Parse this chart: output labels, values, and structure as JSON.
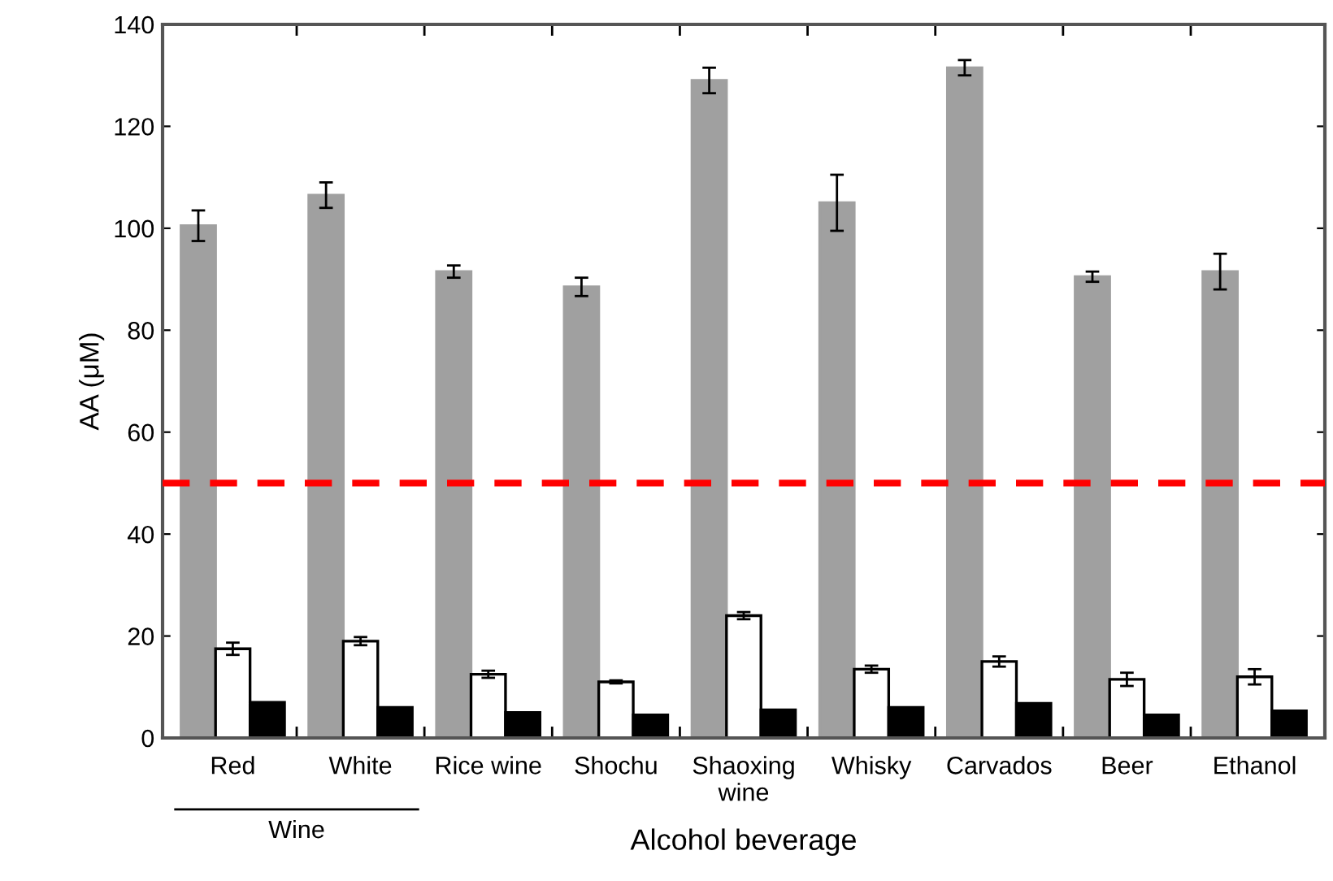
{
  "chart_data": {
    "type": "bar",
    "xlabel": "Alcohol beverage",
    "ylabel": "AA (μM)",
    "categories": [
      "Red",
      "White",
      "Rice wine",
      "Shochu",
      "Shaoxing\nwine",
      "Whisky",
      "Carvados",
      "Beer",
      "Ethanol"
    ],
    "series": [
      {
        "color": "#a0a0a0",
        "values": [
          100.5,
          106.5,
          91.5,
          88.5,
          129,
          105,
          131.5,
          90.5,
          91.5
        ],
        "errors": [
          3,
          2.5,
          1.2,
          1.8,
          2.5,
          5.5,
          1.5,
          1,
          3.5
        ]
      },
      {
        "color": "#ffffff",
        "values": [
          17.5,
          19,
          12.5,
          11,
          24,
          13.5,
          15,
          11.5,
          12
        ],
        "errors": [
          1.2,
          0.8,
          0.7,
          0.3,
          0.7,
          0.7,
          1,
          1.3,
          1.5
        ]
      },
      {
        "color": "#000000",
        "values": [
          7,
          6,
          5,
          4.5,
          5.5,
          6,
          6.8,
          4.5,
          5.3
        ]
      }
    ],
    "ylim": [
      0,
      140
    ],
    "yticks": [
      0,
      20,
      40,
      60,
      80,
      100,
      120,
      140
    ],
    "ref_lines": [
      {
        "axis": "y",
        "value": 50,
        "color": "#ff0000",
        "line_style": "dashed"
      }
    ],
    "annotations": [
      "Wine"
    ],
    "grid": false,
    "legend": false
  }
}
